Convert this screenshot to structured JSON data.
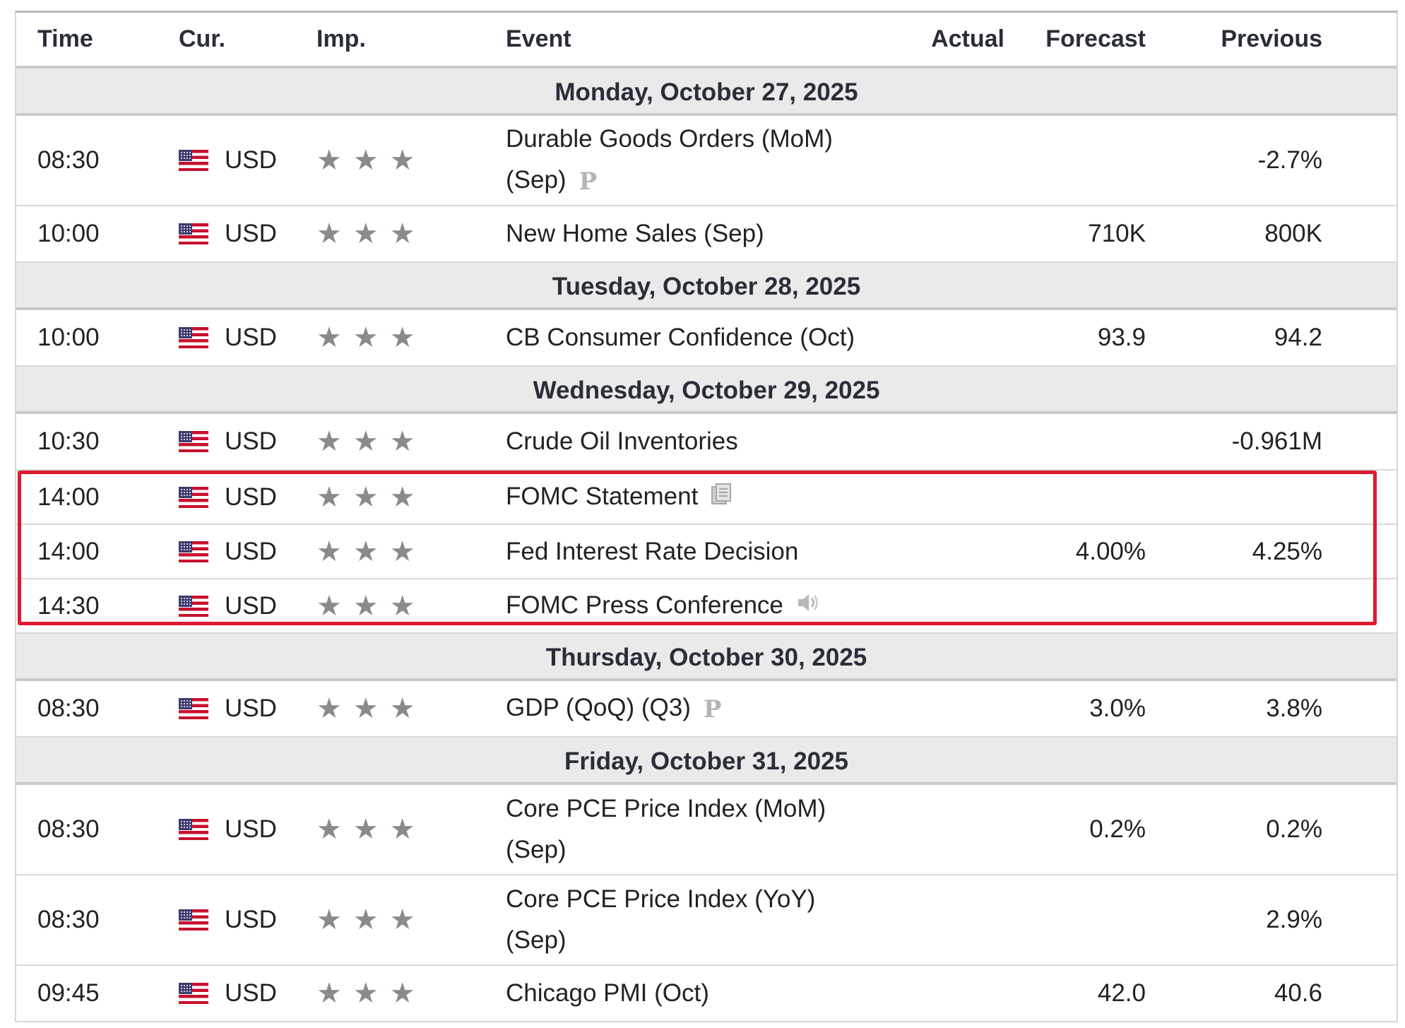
{
  "header": {
    "time": "Time",
    "cur": "Cur.",
    "imp": "Imp.",
    "event": "Event",
    "actual": "Actual",
    "forecast": "Forecast",
    "previous": "Previous"
  },
  "days": [
    {
      "label": "Monday, October 27, 2025"
    },
    {
      "label": "Tuesday, October 28, 2025"
    },
    {
      "label": "Wednesday, October 29, 2025"
    },
    {
      "label": "Thursday, October 30, 2025"
    },
    {
      "label": "Friday, October 31, 2025"
    }
  ],
  "events": [
    {
      "time": "08:30",
      "cur": "USD",
      "importance": 3,
      "name_l1": "Durable Goods Orders (MoM)",
      "name_l2": "(Sep)",
      "badge": "P",
      "forecast": "",
      "previous": "-2.7%"
    },
    {
      "time": "10:00",
      "cur": "USD",
      "importance": 3,
      "name": "New Home Sales (Sep)",
      "forecast": "710K",
      "previous": "800K"
    },
    {
      "time": "10:00",
      "cur": "USD",
      "importance": 3,
      "name": "CB Consumer Confidence (Oct)",
      "forecast": "93.9",
      "previous": "94.2"
    },
    {
      "time": "10:30",
      "cur": "USD",
      "importance": 3,
      "name": "Crude Oil Inventories",
      "forecast": "",
      "previous": "-0.961M"
    },
    {
      "time": "14:00",
      "cur": "USD",
      "importance": 3,
      "name": "FOMC Statement",
      "icon": "document-icon",
      "forecast": "",
      "previous": ""
    },
    {
      "time": "14:00",
      "cur": "USD",
      "importance": 3,
      "name": "Fed Interest Rate Decision",
      "forecast": "4.00%",
      "previous": "4.25%"
    },
    {
      "time": "14:30",
      "cur": "USD",
      "importance": 3,
      "name": "FOMC Press Conference",
      "icon": "speaker-icon",
      "forecast": "",
      "previous": ""
    },
    {
      "time": "08:30",
      "cur": "USD",
      "importance": 3,
      "name": "GDP (QoQ) (Q3)",
      "badge": "P",
      "forecast": "3.0%",
      "previous": "3.8%"
    },
    {
      "time": "08:30",
      "cur": "USD",
      "importance": 3,
      "name_l1": "Core PCE Price Index (MoM)",
      "name_l2": "(Sep)",
      "forecast": "0.2%",
      "previous": "0.2%"
    },
    {
      "time": "08:30",
      "cur": "USD",
      "importance": 3,
      "name_l1": "Core PCE Price Index (YoY)",
      "name_l2": "(Sep)",
      "forecast": "",
      "previous": "2.9%"
    },
    {
      "time": "09:45",
      "cur": "USD",
      "importance": 3,
      "name": "Chicago PMI (Oct)",
      "forecast": "42.0",
      "previous": "40.6"
    }
  ],
  "highlight_color": "#e01b2f",
  "icons": {
    "flag": "us-flag-icon",
    "star": "star-icon",
    "preliminary": "preliminary-badge",
    "doc": "document-icon",
    "speaker": "speaker-icon"
  }
}
